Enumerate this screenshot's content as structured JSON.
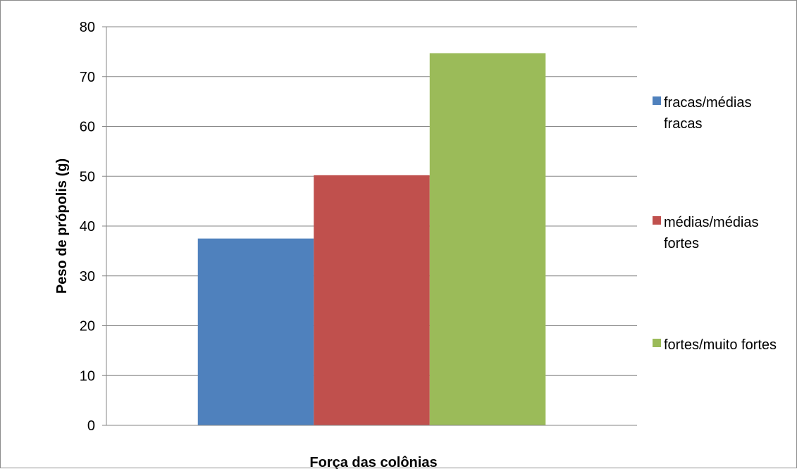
{
  "chart_data": {
    "type": "bar",
    "title": "",
    "xlabel": "Força das colônias",
    "ylabel": "Peso de própolis (g)",
    "ylim": [
      0,
      80
    ],
    "yticks": [
      0,
      10,
      20,
      30,
      40,
      50,
      60,
      70,
      80
    ],
    "grid": true,
    "legend_position": "right",
    "categories": [
      ""
    ],
    "series": [
      {
        "name": "fracas/médias fracas",
        "values": [
          37.5
        ],
        "color": "#4f81bd"
      },
      {
        "name": "médias/médias fortes",
        "values": [
          50.2
        ],
        "color": "#c0504d"
      },
      {
        "name": "fortes/muito fortes",
        "values": [
          74.7
        ],
        "color": "#9bbb59"
      }
    ]
  }
}
